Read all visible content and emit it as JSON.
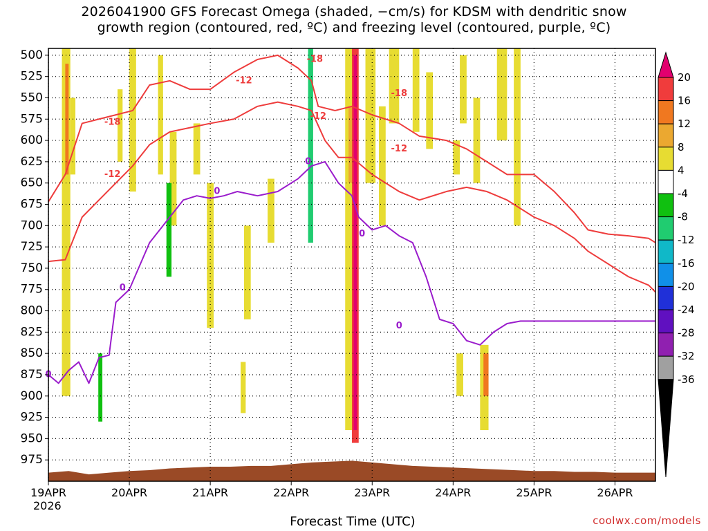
{
  "title": "2026041900 GFS Forecast Omega (shaded, −cm/s) for KDSM with dendritic snow\ngrowth region (contoured, red, ºC) and freezing level (contoured, purple, ºC)",
  "credit": "coolwx.com/models",
  "chart_data": {
    "type": "heatmap",
    "title": "2026041900 GFS Forecast Omega (shaded, −cm/s) for KDSM with dendritic snow growth region (contoured, red, ºC) and freezing level (contoured, purple, ºC)",
    "xlabel": "Forecast Time (UTC)",
    "year_label": "2026",
    "x_ticks": [
      "19APR",
      "20APR",
      "21APR",
      "22APR",
      "23APR",
      "24APR",
      "25APR",
      "26APR"
    ],
    "xlim_hours": [
      0,
      180
    ],
    "y_ticks": [
      500,
      525,
      550,
      575,
      600,
      625,
      650,
      675,
      700,
      725,
      750,
      775,
      800,
      825,
      850,
      875,
      900,
      925,
      950,
      975
    ],
    "ylim_hPa": [
      492,
      1000
    ],
    "y_inverted": true,
    "grid": "dotted",
    "colorbar": {
      "levels": [
        20,
        16,
        12,
        8,
        4,
        -4,
        -8,
        -12,
        -16,
        -20,
        -24,
        -28,
        -32,
        -36
      ],
      "colors": [
        "#e2006e",
        "#f03c3c",
        "#f07820",
        "#eba830",
        "#e7dc32",
        "#ffffff",
        "#10c010",
        "#20cc70",
        "#10b8c8",
        "#1090e8",
        "#2030d8",
        "#6010c0",
        "#9020b0",
        "#a0a0a0",
        "#000000"
      ]
    },
    "contour_labels": [
      {
        "text": "-18",
        "color": "#ee3c3c",
        "x_hour": 19,
        "p": 579
      },
      {
        "text": "-12",
        "color": "#ee3c3c",
        "x_hour": 19,
        "p": 640
      },
      {
        "text": "-12",
        "color": "#ee3c3c",
        "x_hour": 58,
        "p": 530
      },
      {
        "text": "-18",
        "color": "#ee3c3c",
        "x_hour": 79,
        "p": 505
      },
      {
        "text": "-12",
        "color": "#ee3c3c",
        "x_hour": 80,
        "p": 572
      },
      {
        "text": "-18",
        "color": "#ee3c3c",
        "x_hour": 104,
        "p": 545
      },
      {
        "text": "-12",
        "color": "#ee3c3c",
        "x_hour": 104,
        "p": 610
      },
      {
        "text": "0",
        "color": "#9a1ccc",
        "x_hour": 0,
        "p": 875
      },
      {
        "text": "0",
        "color": "#9a1ccc",
        "x_hour": 22,
        "p": 773
      },
      {
        "text": "0",
        "color": "#9a1ccc",
        "x_hour": 50,
        "p": 660
      },
      {
        "text": "0",
        "color": "#9a1ccc",
        "x_hour": 77,
        "p": 625
      },
      {
        "text": "0",
        "color": "#9a1ccc",
        "x_hour": 93,
        "p": 710
      },
      {
        "text": "0",
        "color": "#9a1ccc",
        "x_hour": 104,
        "p": 818
      }
    ],
    "omega_cells": [
      {
        "x": [
          4,
          6.5
        ],
        "p": [
          492,
          900
        ],
        "level": 4
      },
      {
        "x": [
          5,
          6
        ],
        "p": [
          510,
          640
        ],
        "level": 12
      },
      {
        "x": [
          6.5,
          8
        ],
        "p": [
          550,
          640
        ],
        "level": 4
      },
      {
        "x": [
          2.5,
          3.5
        ],
        "p": [
          745,
          830
        ],
        "level": -4
      },
      {
        "x": [
          14,
          17
        ],
        "p": [
          826,
          945
        ],
        "level": -4
      },
      {
        "x": [
          14.8,
          16
        ],
        "p": [
          850,
          930
        ],
        "level": -8
      },
      {
        "x": [
          13.5,
          14.5
        ],
        "p": [
          755,
          790
        ],
        "level": -4
      },
      {
        "x": [
          20.5,
          22
        ],
        "p": [
          540,
          625
        ],
        "level": 4
      },
      {
        "x": [
          24,
          26
        ],
        "p": [
          492,
          660
        ],
        "level": 4
      },
      {
        "x": [
          30.5,
          32.5
        ],
        "p": [
          492,
          730
        ],
        "level": -4
      },
      {
        "x": [
          34,
          36
        ],
        "p": [
          600,
          900
        ],
        "level": -4
      },
      {
        "x": [
          32.5,
          34
        ],
        "p": [
          500,
          640
        ],
        "level": 4
      },
      {
        "x": [
          36,
          38
        ],
        "p": [
          590,
          700
        ],
        "level": 4
      },
      {
        "x": [
          35,
          36.5
        ],
        "p": [
          650,
          760
        ],
        "level": -8
      },
      {
        "x": [
          37,
          38.5
        ],
        "p": [
          700,
          800
        ],
        "level": -4
      },
      {
        "x": [
          40,
          43
        ],
        "p": [
          510,
          560
        ],
        "level": -4
      },
      {
        "x": [
          43,
          45
        ],
        "p": [
          580,
          640
        ],
        "level": 4
      },
      {
        "x": [
          47,
          49
        ],
        "p": [
          650,
          820
        ],
        "level": 4
      },
      {
        "x": [
          55,
          56.5
        ],
        "p": [
          600,
          720
        ],
        "level": -4
      },
      {
        "x": [
          55.5,
          57
        ],
        "p": [
          750,
          800
        ],
        "level": -4
      },
      {
        "x": [
          58,
          60
        ],
        "p": [
          700,
          810
        ],
        "level": 4
      },
      {
        "x": [
          57,
          58.5
        ],
        "p": [
          860,
          920
        ],
        "level": 4
      },
      {
        "x": [
          65,
          67
        ],
        "p": [
          645,
          720
        ],
        "level": 4
      },
      {
        "x": [
          70,
          72
        ],
        "p": [
          700,
          790
        ],
        "level": -4
      },
      {
        "x": [
          76,
          80
        ],
        "p": [
          492,
          900
        ],
        "level": -4
      },
      {
        "x": [
          77,
          78.5
        ],
        "p": [
          492,
          720
        ],
        "level": -12
      },
      {
        "x": [
          80,
          82
        ],
        "p": [
          560,
          925
        ],
        "level": -4
      },
      {
        "x": [
          83,
          86
        ],
        "p": [
          600,
          920
        ],
        "level": -4
      },
      {
        "x": [
          86,
          87.5
        ],
        "p": [
          492,
          700
        ],
        "level": -4
      },
      {
        "x": [
          88,
          90
        ],
        "p": [
          492,
          940
        ],
        "level": 4
      },
      {
        "x": [
          89,
          90.5
        ],
        "p": [
          560,
          650
        ],
        "level": 8
      },
      {
        "x": [
          90,
          92
        ],
        "p": [
          492,
          955
        ],
        "level": 16
      },
      {
        "x": [
          90.5,
          91.5
        ],
        "p": [
          500,
          940
        ],
        "level": 20
      },
      {
        "x": [
          92.5,
          95
        ],
        "p": [
          660,
          830
        ],
        "level": -4
      },
      {
        "x": [
          95,
          98
        ],
        "p": [
          630,
          720
        ],
        "level": -4
      },
      {
        "x": [
          94,
          97
        ],
        "p": [
          492,
          650
        ],
        "level": 4
      },
      {
        "x": [
          98,
          100
        ],
        "p": [
          560,
          700
        ],
        "level": 4
      },
      {
        "x": [
          101,
          104
        ],
        "p": [
          492,
          580
        ],
        "level": 4
      },
      {
        "x": [
          108,
          110
        ],
        "p": [
          492,
          590
        ],
        "level": 4
      },
      {
        "x": [
          112,
          114
        ],
        "p": [
          520,
          610
        ],
        "level": 4
      },
      {
        "x": [
          118,
          120.5
        ],
        "p": [
          492,
          560
        ],
        "level": -4
      },
      {
        "x": [
          122,
          124
        ],
        "p": [
          500,
          580
        ],
        "level": 4
      },
      {
        "x": [
          120,
          122
        ],
        "p": [
          600,
          640
        ],
        "level": 4
      },
      {
        "x": [
          113,
          115
        ],
        "p": [
          830,
          920
        ],
        "level": -4
      },
      {
        "x": [
          118,
          120
        ],
        "p": [
          850,
          940
        ],
        "level": -4
      },
      {
        "x": [
          121,
          123
        ],
        "p": [
          850,
          900
        ],
        "level": 4
      },
      {
        "x": [
          128,
          130.5
        ],
        "p": [
          840,
          940
        ],
        "level": 4
      },
      {
        "x": [
          129,
          130.5
        ],
        "p": [
          850,
          900
        ],
        "level": 12
      },
      {
        "x": [
          135,
          137
        ],
        "p": [
          850,
          950
        ],
        "level": -4
      },
      {
        "x": [
          126,
          128
        ],
        "p": [
          550,
          650
        ],
        "level": 4
      },
      {
        "x": [
          133,
          136
        ],
        "p": [
          492,
          600
        ],
        "level": 4
      },
      {
        "x": [
          138,
          140
        ],
        "p": [
          492,
          700
        ],
        "level": 4
      }
    ],
    "snow_region_upper": [
      [
        0,
        672
      ],
      [
        5,
        640
      ],
      [
        10,
        580
      ],
      [
        15,
        575
      ],
      [
        20,
        570
      ],
      [
        25,
        565
      ],
      [
        30,
        535
      ],
      [
        36,
        530
      ],
      [
        42,
        540
      ],
      [
        48,
        540
      ],
      [
        55,
        520
      ],
      [
        62,
        505
      ],
      [
        68,
        500
      ],
      [
        74,
        515
      ],
      [
        78,
        530
      ],
      [
        80,
        560
      ],
      [
        85,
        565
      ],
      [
        90,
        560
      ],
      [
        96,
        570
      ],
      [
        104,
        580
      ],
      [
        110,
        595
      ],
      [
        118,
        600
      ],
      [
        124,
        610
      ],
      [
        130,
        625
      ],
      [
        136,
        640
      ],
      [
        144,
        640
      ],
      [
        150,
        660
      ],
      [
        156,
        685
      ],
      [
        160,
        705
      ],
      [
        166,
        710
      ],
      [
        172,
        712
      ],
      [
        178,
        715
      ],
      [
        180,
        720
      ]
    ],
    "snow_region_lower": [
      [
        0,
        742
      ],
      [
        5,
        740
      ],
      [
        10,
        690
      ],
      [
        15,
        670
      ],
      [
        20,
        650
      ],
      [
        25,
        630
      ],
      [
        30,
        605
      ],
      [
        36,
        590
      ],
      [
        42,
        585
      ],
      [
        48,
        580
      ],
      [
        55,
        575
      ],
      [
        62,
        560
      ],
      [
        68,
        555
      ],
      [
        74,
        560
      ],
      [
        78,
        565
      ],
      [
        82,
        600
      ],
      [
        86,
        620
      ],
      [
        90,
        620
      ],
      [
        96,
        640
      ],
      [
        104,
        660
      ],
      [
        110,
        670
      ],
      [
        118,
        660
      ],
      [
        124,
        655
      ],
      [
        130,
        660
      ],
      [
        136,
        670
      ],
      [
        144,
        690
      ],
      [
        150,
        700
      ],
      [
        156,
        715
      ],
      [
        160,
        730
      ],
      [
        166,
        745
      ],
      [
        172,
        760
      ],
      [
        178,
        770
      ],
      [
        180,
        778
      ]
    ],
    "freezing_level": [
      [
        0,
        875
      ],
      [
        3,
        885
      ],
      [
        6,
        870
      ],
      [
        9,
        860
      ],
      [
        12,
        885
      ],
      [
        15,
        855
      ],
      [
        18,
        852
      ],
      [
        20,
        790
      ],
      [
        24,
        775
      ],
      [
        30,
        720
      ],
      [
        36,
        690
      ],
      [
        40,
        670
      ],
      [
        44,
        665
      ],
      [
        48,
        668
      ],
      [
        52,
        665
      ],
      [
        56,
        660
      ],
      [
        62,
        665
      ],
      [
        68,
        660
      ],
      [
        74,
        645
      ],
      [
        78,
        630
      ],
      [
        82,
        625
      ],
      [
        86,
        650
      ],
      [
        90,
        665
      ],
      [
        92,
        690
      ],
      [
        96,
        705
      ],
      [
        100,
        700
      ],
      [
        104,
        712
      ],
      [
        108,
        720
      ],
      [
        112,
        760
      ],
      [
        116,
        810
      ],
      [
        120,
        815
      ],
      [
        124,
        835
      ],
      [
        128,
        840
      ],
      [
        132,
        825
      ],
      [
        136,
        815
      ],
      [
        140,
        812
      ],
      [
        144,
        812
      ],
      [
        150,
        812
      ],
      [
        156,
        812
      ],
      [
        160,
        812
      ],
      [
        166,
        812
      ],
      [
        172,
        812
      ],
      [
        178,
        812
      ],
      [
        180,
        812
      ]
    ],
    "terrain_surface": [
      [
        0,
        990
      ],
      [
        6,
        988
      ],
      [
        12,
        992
      ],
      [
        18,
        990
      ],
      [
        24,
        988
      ],
      [
        30,
        987
      ],
      [
        36,
        985
      ],
      [
        42,
        984
      ],
      [
        48,
        983
      ],
      [
        54,
        983
      ],
      [
        60,
        982
      ],
      [
        66,
        982
      ],
      [
        72,
        980
      ],
      [
        78,
        978
      ],
      [
        84,
        977
      ],
      [
        90,
        976
      ],
      [
        96,
        978
      ],
      [
        102,
        980
      ],
      [
        108,
        982
      ],
      [
        114,
        983
      ],
      [
        120,
        984
      ],
      [
        126,
        985
      ],
      [
        132,
        986
      ],
      [
        138,
        987
      ],
      [
        144,
        988
      ],
      [
        150,
        988
      ],
      [
        156,
        989
      ],
      [
        162,
        989
      ],
      [
        168,
        990
      ],
      [
        174,
        990
      ],
      [
        180,
        990
      ]
    ]
  }
}
